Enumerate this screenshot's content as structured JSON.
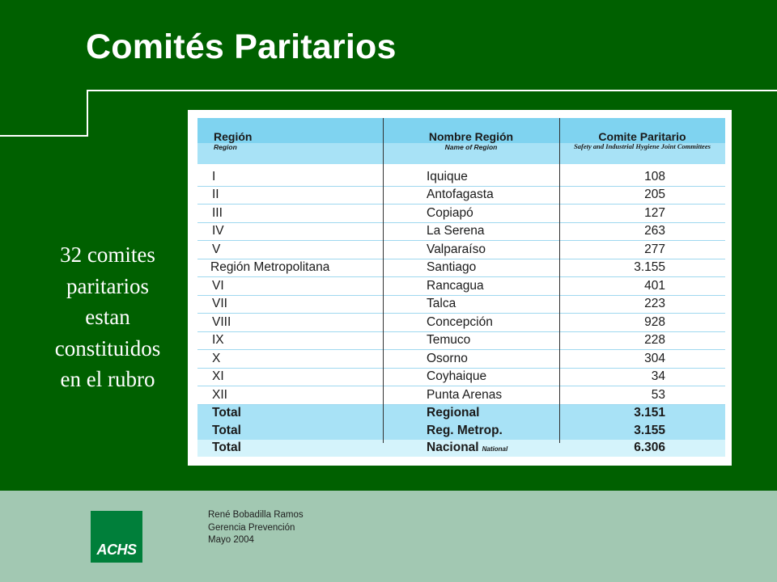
{
  "slide": {
    "title": "Comités Paritarios",
    "side_text": [
      "32 comites",
      "paritarios",
      "estan",
      "constituidos",
      "en el rubro"
    ]
  },
  "table": {
    "headers": {
      "region": "Región",
      "region_en": "Region",
      "nombre": "Nombre Región",
      "nombre_en": "Name of Region",
      "comite": "Comite Paritario",
      "comite_en": "Safety and Industrial Hygiene Joint Committees"
    },
    "rows": [
      {
        "region": "I",
        "nombre": "Iquique",
        "valor": "108"
      },
      {
        "region": "II",
        "nombre": "Antofagasta",
        "valor": "205"
      },
      {
        "region": "III",
        "nombre": "Copiapó",
        "valor": "127"
      },
      {
        "region": "IV",
        "nombre": "La Serena",
        "valor": "263"
      },
      {
        "region": "V",
        "nombre": "Valparaíso",
        "valor": "277"
      },
      {
        "region": "Región Metropolitana",
        "nombre": "Santiago",
        "valor": "3.155"
      },
      {
        "region": "VI",
        "nombre": "Rancagua",
        "valor": "401"
      },
      {
        "region": "VII",
        "nombre": "Talca",
        "valor": "223"
      },
      {
        "region": "VIII",
        "nombre": "Concepción",
        "valor": "928"
      },
      {
        "region": "IX",
        "nombre": "Temuco",
        "valor": "228"
      },
      {
        "region": "X",
        "nombre": "Osorno",
        "valor": "304"
      },
      {
        "region": "XI",
        "nombre": "Coyhaique",
        "valor": "34"
      },
      {
        "region": "XII",
        "nombre": "Punta Arenas",
        "valor": "53"
      }
    ],
    "totals": [
      {
        "label": "Total",
        "nombre": "Regional",
        "valor": "3.151"
      },
      {
        "label": "Total",
        "nombre": "Reg. Metrop.",
        "valor": "3.155"
      },
      {
        "label": "Total",
        "nombre": "Nacional",
        "nombre_en": "National",
        "valor": "6.306"
      }
    ]
  },
  "footer": {
    "logo_text": "ACHS",
    "author": "René Bobadilla Ramos",
    "department": "Gerencia Prevención",
    "date": "Mayo 2004"
  },
  "colors": {
    "background": "#006000",
    "footer": "#a2c8b2",
    "header_blue": "#7fd3f0",
    "subheader_blue": "#a8e2f6",
    "logo_green": "#007f3a"
  }
}
